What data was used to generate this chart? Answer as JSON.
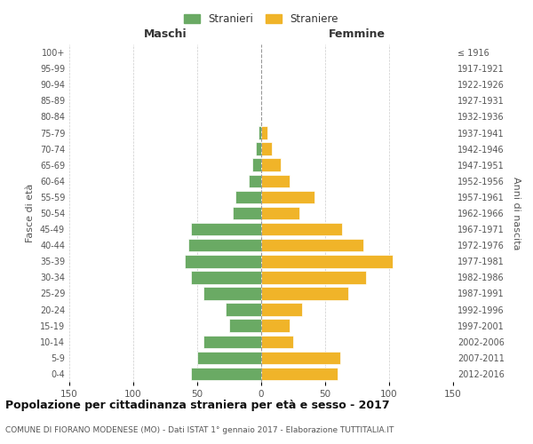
{
  "age_groups_bottom_to_top": [
    "0-4",
    "5-9",
    "10-14",
    "15-19",
    "20-24",
    "25-29",
    "30-34",
    "35-39",
    "40-44",
    "45-49",
    "50-54",
    "55-59",
    "60-64",
    "65-69",
    "70-74",
    "75-79",
    "80-84",
    "85-89",
    "90-94",
    "95-99",
    "100+"
  ],
  "birth_years_bottom_to_top": [
    "2012-2016",
    "2007-2011",
    "2002-2006",
    "1997-2001",
    "1992-1996",
    "1987-1991",
    "1982-1986",
    "1977-1981",
    "1972-1976",
    "1967-1971",
    "1962-1966",
    "1957-1961",
    "1952-1956",
    "1947-1951",
    "1942-1946",
    "1937-1941",
    "1932-1936",
    "1927-1931",
    "1922-1926",
    "1917-1921",
    "≤ 1916"
  ],
  "maschi_bottom_to_top": [
    55,
    50,
    45,
    25,
    28,
    45,
    55,
    60,
    57,
    55,
    22,
    20,
    10,
    7,
    4,
    2,
    0,
    0,
    0,
    0,
    0
  ],
  "femmine_bottom_to_top": [
    60,
    62,
    25,
    22,
    32,
    68,
    82,
    103,
    80,
    63,
    30,
    42,
    22,
    15,
    8,
    5,
    0,
    0,
    0,
    0,
    0
  ],
  "male_color": "#6aaa64",
  "female_color": "#f0b429",
  "title": "Popolazione per cittadinanza straniera per età e sesso - 2017",
  "subtitle": "COMUNE DI FIORANO MODENESE (MO) - Dati ISTAT 1° gennaio 2017 - Elaborazione TUTTITALIA.IT",
  "ylabel_left": "Fasce di età",
  "ylabel_right": "Anni di nascita",
  "header_maschi": "Maschi",
  "header_femmine": "Femmine",
  "legend_maschi": "Stranieri",
  "legend_femmine": "Straniere",
  "xlim": 150,
  "background_color": "#ffffff",
  "grid_color": "#cccccc",
  "title_fontsize": 9,
  "subtitle_fontsize": 6.5
}
